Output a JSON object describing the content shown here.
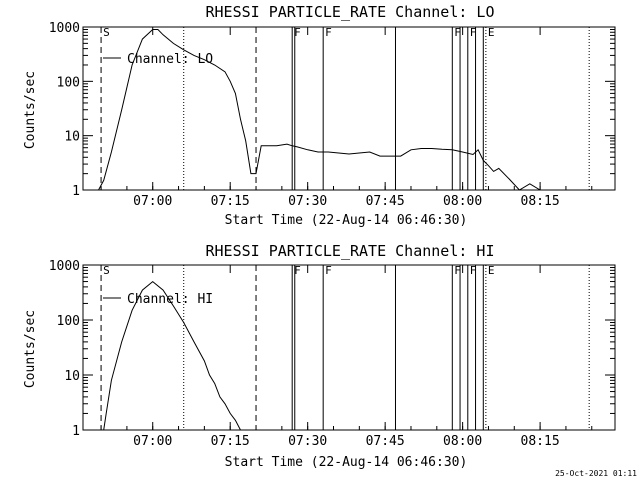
{
  "timestamp": "25-Oct-2021 01:11",
  "chart_data": [
    {
      "type": "line",
      "title": "RHESSI PARTICLE_RATE Channel: LO",
      "xlabel": "Start Time (22-Aug-14 06:46:30)",
      "ylabel": "Counts/sec",
      "yscale": "log",
      "ylim": [
        1,
        1000
      ],
      "xlim": [
        "06:46:30",
        "08:29:30"
      ],
      "x_ticks": [
        "07:00",
        "07:15",
        "07:30",
        "07:45",
        "08:00",
        "08:15"
      ],
      "y_ticks": [
        "1",
        "10",
        "100",
        "1000"
      ],
      "legend": "Channel: LO",
      "legend_position": "top-left",
      "flags": [
        {
          "label": "S",
          "time": "06:50:00",
          "style": "dashed"
        },
        {
          "label": "F",
          "time": "07:27:00",
          "style": "solid"
        },
        {
          "label": "F",
          "time": "07:33:00",
          "style": "solid"
        },
        {
          "label": "F",
          "time": "07:58:00",
          "style": "solid"
        },
        {
          "label": "F",
          "time": "08:01:00",
          "style": "solid"
        },
        {
          "label": "E",
          "time": "08:04:30",
          "style": "solid"
        }
      ],
      "vertical_lines": [
        {
          "time": "06:50:00",
          "style": "dashed"
        },
        {
          "time": "07:06:00",
          "style": "dotted"
        },
        {
          "time": "07:20:00",
          "style": "dashed"
        },
        {
          "time": "07:27:00",
          "style": "solid"
        },
        {
          "time": "07:27:30",
          "style": "solid"
        },
        {
          "time": "07:33:00",
          "style": "solid"
        },
        {
          "time": "07:47:00",
          "style": "solid"
        },
        {
          "time": "07:58:00",
          "style": "solid"
        },
        {
          "time": "07:59:30",
          "style": "solid"
        },
        {
          "time": "08:01:00",
          "style": "solid"
        },
        {
          "time": "08:02:30",
          "style": "solid"
        },
        {
          "time": "08:04:00",
          "style": "solid"
        },
        {
          "time": "08:04:30",
          "style": "dotted"
        },
        {
          "time": "08:24:30",
          "style": "dotted"
        }
      ],
      "series": [
        {
          "name": "Channel: LO",
          "x": [
            "06:49:30",
            "06:50:30",
            "06:52:00",
            "06:54:00",
            "06:56:00",
            "06:58:00",
            "07:00:00",
            "07:01:00",
            "07:02:00",
            "07:04:00",
            "07:06:00",
            "07:08:00",
            "07:10:00",
            "07:12:00",
            "07:14:00",
            "07:15:00",
            "07:16:00",
            "07:17:00",
            "07:18:00",
            "07:19:00",
            "07:20:00",
            "07:21:00",
            "07:22:00",
            "07:24:00",
            "07:26:00",
            "07:27:00",
            "07:28:00",
            "07:30:00",
            "07:32:00",
            "07:34:00",
            "07:36:00",
            "07:38:00",
            "07:40:00",
            "07:42:00",
            "07:44:00",
            "07:46:00",
            "07:48:00",
            "07:50:00",
            "07:52:00",
            "07:54:00",
            "07:56:00",
            "07:58:00",
            "08:00:00",
            "08:02:00",
            "08:03:00",
            "08:04:00",
            "08:05:00",
            "08:06:00",
            "08:07:00",
            "08:09:00",
            "08:11:00",
            "08:13:00",
            "08:15:00",
            "08:17:00"
          ],
          "y": [
            1,
            1.5,
            5,
            30,
            200,
            600,
            900,
            900,
            720,
            500,
            380,
            300,
            250,
            200,
            150,
            100,
            60,
            20,
            8,
            2,
            2,
            6.5,
            6.5,
            6.5,
            7,
            6.5,
            6.2,
            5.5,
            5,
            5,
            4.8,
            4.6,
            4.8,
            5,
            4.2,
            4.2,
            4.2,
            5.5,
            5.8,
            5.8,
            5.6,
            5.5,
            5,
            4.5,
            5.5,
            3.5,
            2.8,
            2.2,
            2.5,
            1.6,
            1,
            1.3,
            1,
            1
          ]
        }
      ]
    },
    {
      "type": "line",
      "title": "RHESSI PARTICLE_RATE Channel: HI",
      "xlabel": "Start Time (22-Aug-14 06:46:30)",
      "ylabel": "Counts/sec",
      "yscale": "log",
      "ylim": [
        1,
        1000
      ],
      "xlim": [
        "06:46:30",
        "08:29:30"
      ],
      "x_ticks": [
        "07:00",
        "07:15",
        "07:30",
        "07:45",
        "08:00",
        "08:15"
      ],
      "y_ticks": [
        "1",
        "10",
        "100",
        "1000"
      ],
      "legend": "Channel: HI",
      "legend_position": "top-left",
      "flags": [
        {
          "label": "S",
          "time": "06:50:00",
          "style": "dashed"
        },
        {
          "label": "F",
          "time": "07:27:00",
          "style": "solid"
        },
        {
          "label": "F",
          "time": "07:33:00",
          "style": "solid"
        },
        {
          "label": "F",
          "time": "07:58:00",
          "style": "solid"
        },
        {
          "label": "F",
          "time": "08:01:00",
          "style": "solid"
        },
        {
          "label": "E",
          "time": "08:04:30",
          "style": "solid"
        }
      ],
      "vertical_lines": [
        {
          "time": "06:50:00",
          "style": "dashed"
        },
        {
          "time": "07:06:00",
          "style": "dotted"
        },
        {
          "time": "07:20:00",
          "style": "dashed"
        },
        {
          "time": "07:27:00",
          "style": "solid"
        },
        {
          "time": "07:27:30",
          "style": "solid"
        },
        {
          "time": "07:33:00",
          "style": "solid"
        },
        {
          "time": "07:47:00",
          "style": "solid"
        },
        {
          "time": "07:58:00",
          "style": "solid"
        },
        {
          "time": "07:59:30",
          "style": "solid"
        },
        {
          "time": "08:01:00",
          "style": "solid"
        },
        {
          "time": "08:02:30",
          "style": "solid"
        },
        {
          "time": "08:04:00",
          "style": "solid"
        },
        {
          "time": "08:04:30",
          "style": "dotted"
        },
        {
          "time": "08:24:30",
          "style": "dotted"
        }
      ],
      "series": [
        {
          "name": "Channel: HI",
          "x": [
            "06:50:30",
            "06:51:00",
            "06:52:00",
            "06:54:00",
            "06:56:00",
            "06:58:00",
            "07:00:00",
            "07:02:00",
            "07:04:00",
            "07:06:00",
            "07:08:00",
            "07:10:00",
            "07:11:00",
            "07:12:00",
            "07:13:00",
            "07:14:00",
            "07:15:00",
            "07:16:00",
            "07:17:00"
          ],
          "y": [
            1,
            2,
            8,
            40,
            150,
            350,
            500,
            350,
            180,
            90,
            40,
            18,
            10,
            7,
            4,
            3,
            2,
            1.5,
            1
          ]
        }
      ]
    }
  ]
}
